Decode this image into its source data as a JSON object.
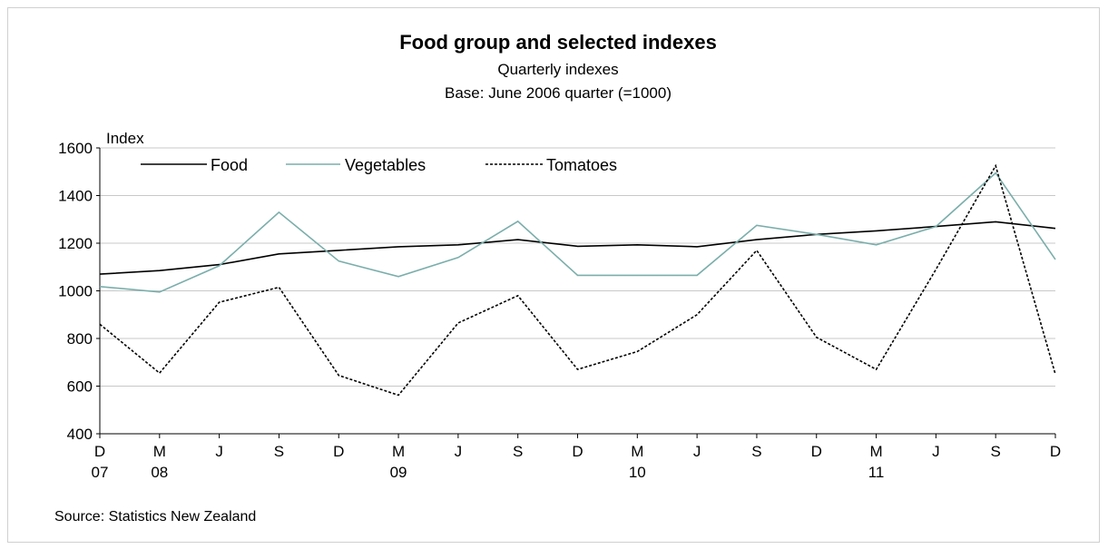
{
  "chart_data": {
    "type": "line",
    "title": "Food group and selected indexes",
    "subtitle": "Quarterly indexes",
    "subtitle2": "Base: June 2006 quarter (=1000)",
    "ylabel": "Index",
    "source": "Source: Statistics New Zealand",
    "ylim": [
      400,
      1600
    ],
    "yticks": [
      400,
      600,
      800,
      1000,
      1200,
      1400,
      1600
    ],
    "grid": true,
    "legend_position": "top-left",
    "categories": [
      "D 07",
      "M 08",
      "J",
      "S",
      "D",
      "M 09",
      "J",
      "S",
      "D",
      "M 10",
      "J",
      "S",
      "D",
      "M 11",
      "J",
      "S",
      "D"
    ],
    "xtick_labels": [
      "D",
      "M",
      "J",
      "S",
      "D",
      "M",
      "J",
      "S",
      "D",
      "M",
      "J",
      "S",
      "D",
      "M",
      "J",
      "S",
      "D"
    ],
    "xtick_years": [
      "07",
      "08",
      "",
      "",
      "",
      "09",
      "",
      "",
      "",
      "10",
      "",
      "",
      "",
      "11",
      "",
      "",
      ""
    ],
    "series": [
      {
        "name": "Food",
        "color": "#000000",
        "dash": "solid",
        "values": [
          1070,
          1085,
          1110,
          1155,
          1170,
          1185,
          1193,
          1215,
          1187,
          1193,
          1185,
          1215,
          1237,
          1252,
          1270,
          1290,
          1262
        ]
      },
      {
        "name": "Vegetables",
        "color": "#7aaeab",
        "dash": "solid",
        "values": [
          1018,
          995,
          1105,
          1330,
          1125,
          1060,
          1140,
          1292,
          1065,
          1065,
          1065,
          1275,
          1237,
          1193,
          1270,
          1495,
          1132
        ]
      },
      {
        "name": "Tomatoes",
        "color": "#000000",
        "dash": "dashed",
        "values": [
          860,
          655,
          952,
          1015,
          645,
          562,
          865,
          980,
          670,
          745,
          900,
          1170,
          805,
          670,
          1090,
          1525,
          650
        ]
      }
    ]
  }
}
